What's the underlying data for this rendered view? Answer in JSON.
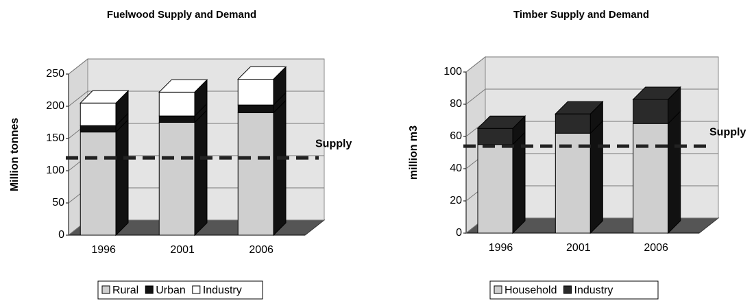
{
  "chart_data": [
    {
      "type": "bar",
      "stacked": true,
      "title": "Fuelwood Supply and Demand",
      "y_label": "Million tonnes",
      "categories": [
        "1996",
        "2001",
        "2006"
      ],
      "series": [
        {
          "name": "Rural",
          "color": "#cfcfcf",
          "values": [
            160,
            175,
            190
          ]
        },
        {
          "name": "Urban",
          "color": "#111111",
          "values": [
            10,
            10,
            12
          ]
        },
        {
          "name": "Industry",
          "color": "#ffffff",
          "values": [
            35,
            37,
            40
          ]
        }
      ],
      "ylim": [
        0,
        250
      ],
      "yticks": [
        0,
        50,
        100,
        150,
        200,
        250
      ],
      "grid": true,
      "reference_line": {
        "label": "Supply",
        "value": 120
      },
      "legend": "bottom"
    },
    {
      "type": "bar",
      "stacked": true,
      "title": "Timber Supply and Demand",
      "y_label": "million m3",
      "categories": [
        "1996",
        "2001",
        "2006"
      ],
      "series": [
        {
          "name": "Household",
          "color": "#cfcfcf",
          "values": [
            55,
            62,
            68
          ]
        },
        {
          "name": "Industry",
          "color": "#2a2a2a",
          "values": [
            10,
            12,
            15
          ]
        }
      ],
      "ylim": [
        0,
        100
      ],
      "yticks": [
        0,
        20,
        40,
        60,
        80,
        100
      ],
      "grid": true,
      "reference_line": {
        "label": "Supply",
        "value": 54
      },
      "legend": "bottom"
    }
  ]
}
